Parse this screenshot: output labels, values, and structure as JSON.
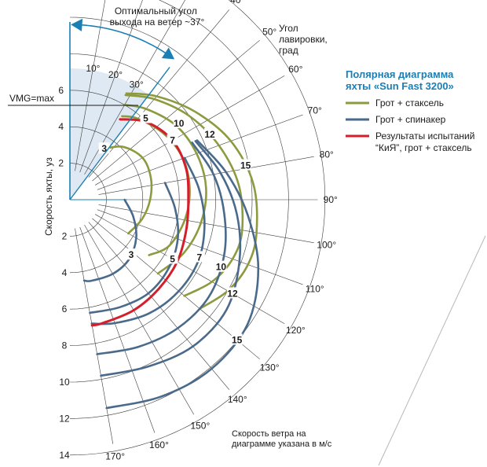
{
  "chart_data": {
    "type": "line",
    "subtype": "polar",
    "theta_unit": "deg",
    "r_unit": "knots",
    "optimal_angle": {
      "title_lines": [
        "Оптимальный угол",
        "выхода на ветер ~37°"
      ],
      "value": 37
    },
    "vmg_label": "VMG=max",
    "radial_axis": {
      "label": "Скорость яхты, уз",
      "ticks_upper": [
        "2",
        "4",
        "6"
      ],
      "ticks_lower": [
        "2",
        "4",
        "6",
        "8",
        "10",
        "12",
        "14"
      ],
      "range": [
        0,
        14
      ]
    },
    "angle_axis": {
      "title_lines": [
        "Угол",
        "лавировки,",
        "град"
      ],
      "ticks": [
        "10°",
        "20°",
        "30°",
        "40°",
        "50°",
        "60°",
        "70°",
        "80°",
        "90°",
        "100°",
        "110°",
        "120°",
        "130°",
        "140°",
        "150°",
        "160°",
        "170°"
      ],
      "values": [
        10,
        20,
        30,
        40,
        50,
        60,
        70,
        80,
        90,
        100,
        110,
        120,
        130,
        140,
        150,
        160,
        170
      ]
    },
    "legend": {
      "title_lines": [
        "Полярная диаграмма",
        "яхты «Sun Fast 3200»"
      ],
      "items": [
        {
          "label_lines": [
            "Грот + стаксель"
          ],
          "color": "#8d9a3e"
        },
        {
          "label_lines": [
            "Грот + спинакер"
          ],
          "color": "#4a6a8c"
        },
        {
          "label_lines": [
            "Результаты испытаний",
            "“КиЯ”, грот + стаксель"
          ],
          "color": "#d41e2a"
        }
      ]
    },
    "note_lines": [
      "Скорость ветра на",
      "диаграмме указана в м/с"
    ],
    "series": [
      {
        "name": "Грот + стаксель",
        "wind": "3",
        "color": "#8d9a3e",
        "label_angle": 34,
        "points": [
          [
            33,
            3.3
          ],
          [
            45,
            4.1
          ],
          [
            60,
            4.6
          ],
          [
            75,
            4.6
          ],
          [
            90,
            4.4
          ],
          [
            105,
            4.1
          ],
          [
            120,
            3.7
          ]
        ]
      },
      {
        "name": "Грот + стаксель",
        "wind": "5",
        "color": "#8d9a3e",
        "points": [
          [
            32,
            5.4
          ],
          [
            40,
            5.8
          ],
          [
            55,
            6.3
          ],
          [
            70,
            6.6
          ],
          [
            85,
            6.6
          ],
          [
            100,
            6.4
          ],
          [
            115,
            6.0
          ],
          [
            125,
            5.3
          ]
        ]
      },
      {
        "name": "Грот + стаксель",
        "wind": "7",
        "color": "#8d9a3e",
        "points": [
          [
            30,
            6.0
          ],
          [
            40,
            6.5
          ],
          [
            55,
            7.1
          ],
          [
            70,
            7.4
          ],
          [
            85,
            7.5
          ],
          [
            100,
            7.3
          ],
          [
            115,
            6.9
          ],
          [
            130,
            6.3
          ]
        ]
      },
      {
        "name": "Грот + стаксель",
        "wind": "12",
        "color": "#8d9a3e",
        "label_angle": 65,
        "points": [
          [
            28,
            6.5
          ],
          [
            40,
            7.2
          ],
          [
            55,
            8.0
          ],
          [
            70,
            8.7
          ],
          [
            85,
            9.3
          ],
          [
            100,
            9.6
          ],
          [
            110,
            9.5
          ],
          [
            120,
            9.0
          ],
          [
            130,
            8.2
          ]
        ]
      },
      {
        "name": "Грот + стаксель",
        "wind": "15",
        "color": "#8d9a3e",
        "label_angle": 79,
        "points": [
          [
            28,
            6.6
          ],
          [
            40,
            7.4
          ],
          [
            55,
            8.4
          ],
          [
            70,
            9.4
          ],
          [
            85,
            10.1
          ],
          [
            100,
            10.4
          ],
          [
            110,
            10.4
          ],
          [
            120,
            10.0
          ],
          [
            130,
            9.3
          ]
        ]
      },
      {
        "name": "Грот + спинакер",
        "wind": "3",
        "color": "#4a6a8c",
        "label_angle": 132,
        "points": [
          [
            90,
            3.0
          ],
          [
            105,
            3.6
          ],
          [
            120,
            4.2
          ],
          [
            135,
            4.6
          ],
          [
            150,
            4.7
          ],
          [
            165,
            4.6
          ],
          [
            170,
            4.5
          ]
        ]
      },
      {
        "name": "Грот + спинакер",
        "wind": "5",
        "color": "#4a6a8c",
        "label_angle": 120,
        "points": [
          [
            80,
            5.3
          ],
          [
            95,
            5.8
          ],
          [
            110,
            6.3
          ],
          [
            125,
            6.6
          ],
          [
            140,
            6.7
          ],
          [
            155,
            6.5
          ],
          [
            170,
            6.3
          ]
        ]
      },
      {
        "name": "Грот + спинакер",
        "wind": "7",
        "color": "#4a6a8c",
        "label_angle": 114,
        "points": [
          [
            70,
            6.7
          ],
          [
            85,
            7.1
          ],
          [
            100,
            7.5
          ],
          [
            115,
            7.8
          ],
          [
            130,
            7.8
          ],
          [
            145,
            7.6
          ],
          [
            160,
            7.2
          ],
          [
            170,
            6.9
          ]
        ]
      },
      {
        "name": "Грот + спинакер",
        "wind": "10",
        "color": "#4a6a8c",
        "label_angle": 114,
        "points": [
          [
            65,
            7.4
          ],
          [
            80,
            8.0
          ],
          [
            95,
            8.5
          ],
          [
            110,
            9.0
          ],
          [
            125,
            9.3
          ],
          [
            140,
            9.2
          ],
          [
            155,
            8.9
          ],
          [
            170,
            8.6
          ]
        ]
      },
      {
        "name": "Грот + спинакер",
        "wind": "12",
        "color": "#4a6a8c",
        "label_angle": 120,
        "points": [
          [
            65,
            7.6
          ],
          [
            80,
            8.4
          ],
          [
            95,
            9.2
          ],
          [
            110,
            9.9
          ],
          [
            125,
            10.5
          ],
          [
            140,
            10.5
          ],
          [
            155,
            10.1
          ],
          [
            170,
            9.8
          ]
        ]
      },
      {
        "name": "Грот + спинакер",
        "wind": "15",
        "color": "#4a6a8c",
        "label_angle": 130,
        "points": [
          [
            65,
            7.7
          ],
          [
            80,
            8.7
          ],
          [
            95,
            9.8
          ],
          [
            110,
            11.0
          ],
          [
            125,
            11.9
          ],
          [
            140,
            12.1
          ],
          [
            155,
            11.9
          ],
          [
            170,
            11.6
          ]
        ]
      },
      {
        "name": "Результаты испытаний “КиЯ”, грот + стаксель",
        "wind": "7",
        "color": "#d41e2a",
        "label_angle": 60,
        "points": [
          [
            32,
            5.2
          ],
          [
            45,
            6.0
          ],
          [
            60,
            6.5
          ],
          [
            75,
            6.6
          ],
          [
            90,
            6.5
          ],
          [
            105,
            6.6
          ],
          [
            120,
            6.8
          ],
          [
            135,
            6.9
          ],
          [
            150,
            7.0
          ],
          [
            165,
            7.0
          ],
          [
            170,
            7.0
          ]
        ]
      }
    ],
    "extra_wind_labels": [
      {
        "text": "5",
        "angle": 43,
        "r": 6.1,
        "color": "#8d9a3e"
      },
      {
        "text": "10",
        "angle": 55,
        "r": 7.3,
        "color": "#8d9a3e"
      }
    ],
    "grid": true
  }
}
